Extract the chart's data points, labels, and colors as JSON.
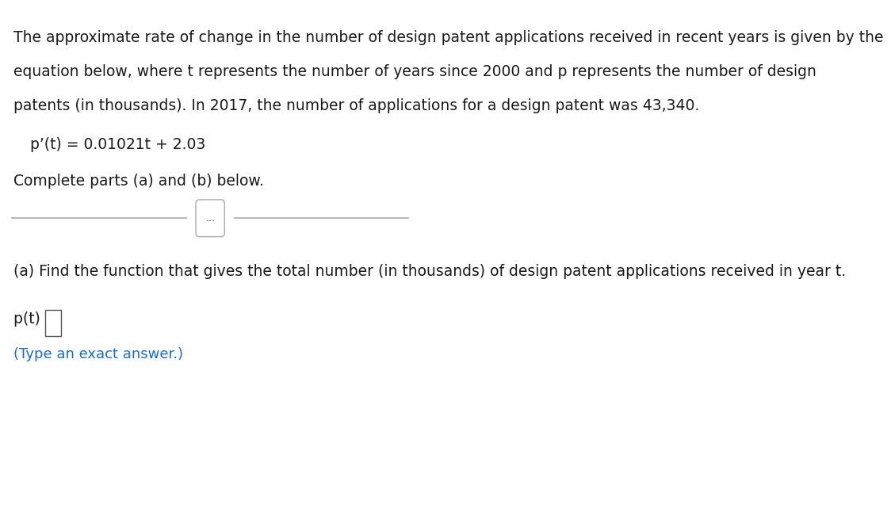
{
  "background_color": "#ffffff",
  "paragraph_text": "The approximate rate of change in the number of design patent applications received in recent years is given by the\nequation below, where t represents the number of years since 2000 and p represents the number of design\npatents (in thousands). In 2017, the number of applications for a design patent was 43,340.",
  "equation_text": "p’(t) = 0.01021t + 2.03",
  "complete_text": "Complete parts (a) and (b) below.",
  "part_a_text": "(a) Find the function that gives the total number (in thousands) of design patent applications received in year t.",
  "pt_label": "p(t) =",
  "type_note": "(Type an exact answer.)",
  "separator_dots": "...",
  "font_size_main": 13.5,
  "font_size_equation": 13.5,
  "font_size_note": 13.0,
  "text_color": "#1a1a1a",
  "blue_color": "#1a6ccc",
  "line_color": "#aaaaaa"
}
